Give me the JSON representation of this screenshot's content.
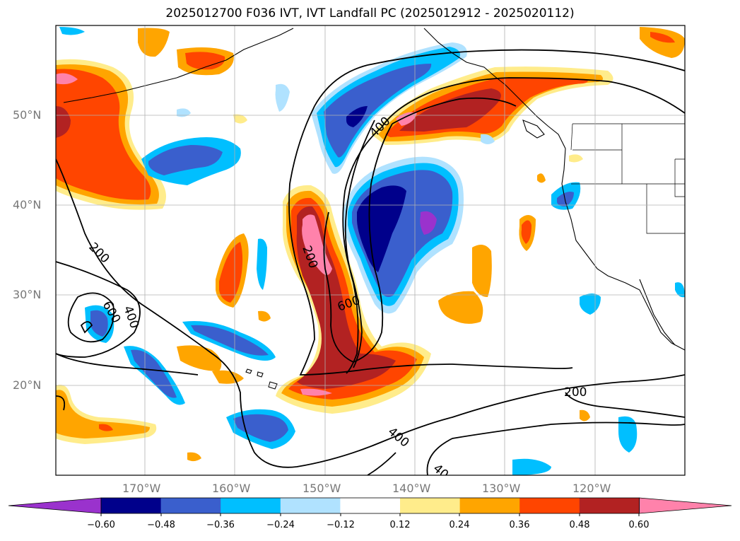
{
  "title": "2025012700 F036 IVT, IVT Landfall PC (2025012912 - 2025020112)",
  "lat_labels": [
    "50°N",
    "40°N",
    "30°N",
    "20°N"
  ],
  "lon_labels": [
    "170°W",
    "160°W",
    "150°W",
    "140°W",
    "130°W",
    "120°W"
  ],
  "contour_labels": [
    "200",
    "400",
    "600",
    "200",
    "600",
    "400",
    "200",
    "400",
    "40"
  ],
  "colorbar": {
    "ticks": [
      "−0.60",
      "−0.48",
      "−0.36",
      "−0.24",
      "−0.12",
      "0.12",
      "0.24",
      "0.36",
      "0.48",
      "0.60"
    ],
    "colors": [
      "#9a32cd",
      "#00008b",
      "#3a5fcd",
      "#00bfff",
      "#b0e2ff",
      "#ffffff",
      "#ffec8b",
      "#ffa500",
      "#ff4500",
      "#b22222",
      "#ff82ab"
    ]
  }
}
